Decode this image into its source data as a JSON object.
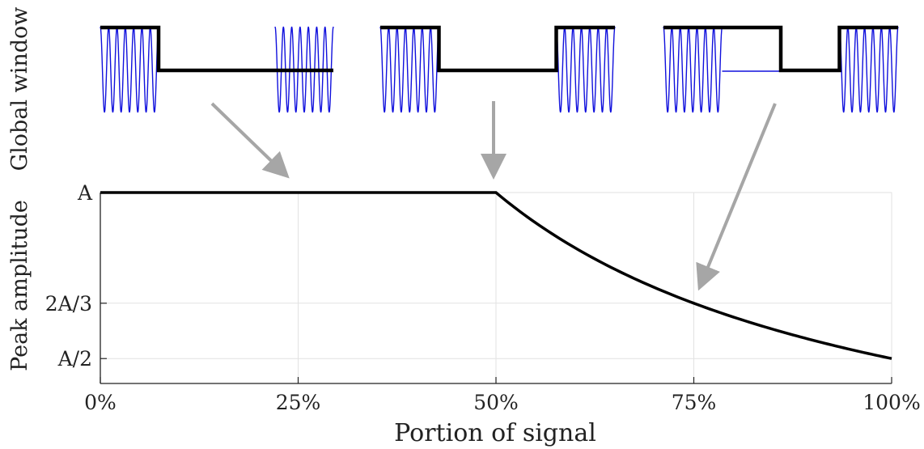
{
  "colors": {
    "curve": "#000000",
    "window": "#000000",
    "signal": "#1010dd",
    "arrow": "#a6a6a6",
    "grid": "#e2e2e2",
    "axis": "#222222"
  },
  "top_panel": {
    "ylabel": "Global window",
    "windows": [
      {
        "name": "window-25-percent",
        "window_high_fraction_ranges": [
          [
            0.0,
            0.25
          ]
        ],
        "signal_fraction_ranges": [
          [
            0.0,
            0.25
          ],
          [
            0.75,
            1.0
          ]
        ],
        "full_amplitude": true
      },
      {
        "name": "window-50-percent",
        "window_high_fraction_ranges": [
          [
            0.0,
            0.25
          ],
          [
            0.75,
            1.0
          ]
        ],
        "signal_fraction_ranges": [
          [
            0.0,
            0.25
          ],
          [
            0.75,
            1.0
          ]
        ],
        "full_amplitude": true
      },
      {
        "name": "window-75-percent",
        "window_high_fraction_ranges": [
          [
            0.0,
            0.5
          ],
          [
            0.75,
            1.0
          ]
        ],
        "signal_fraction_ranges": [
          [
            0.0,
            0.25
          ],
          [
            0.75,
            1.0
          ]
        ],
        "full_amplitude": true,
        "zero_signal_fraction_ranges": [
          [
            0.25,
            0.5
          ]
        ]
      }
    ]
  },
  "chart_data": {
    "type": "line",
    "xlabel": "Portion of signal",
    "ylabel": "Peak amplitude",
    "xlim": [
      0,
      100
    ],
    "ylim": [
      0.425,
      1.0
    ],
    "grid": true,
    "x_ticks": [
      {
        "value": 0,
        "label": "0%"
      },
      {
        "value": 25,
        "label": "25%"
      },
      {
        "value": 50,
        "label": "50%"
      },
      {
        "value": 75,
        "label": "75%"
      },
      {
        "value": 100,
        "label": "100%"
      }
    ],
    "y_ticks": [
      {
        "value": 1.0,
        "label": "A"
      },
      {
        "value": 0.6667,
        "label": "2A/3"
      },
      {
        "value": 0.5,
        "label": "A/2"
      }
    ],
    "series": [
      {
        "x": [
          0,
          25,
          50,
          55,
          60,
          65,
          70,
          75,
          80,
          85,
          90,
          95,
          100
        ],
        "values": [
          1.0,
          1.0,
          1.0,
          0.909,
          0.833,
          0.769,
          0.714,
          0.667,
          0.625,
          0.588,
          0.556,
          0.526,
          0.5
        ]
      }
    ],
    "arrows": [
      {
        "from_window": 0,
        "to_x": 25,
        "to_y": 1.0
      },
      {
        "from_window": 1,
        "to_x": 50,
        "to_y": 1.0
      },
      {
        "from_window": 2,
        "to_x": 75,
        "to_y": 0.6667
      }
    ]
  }
}
